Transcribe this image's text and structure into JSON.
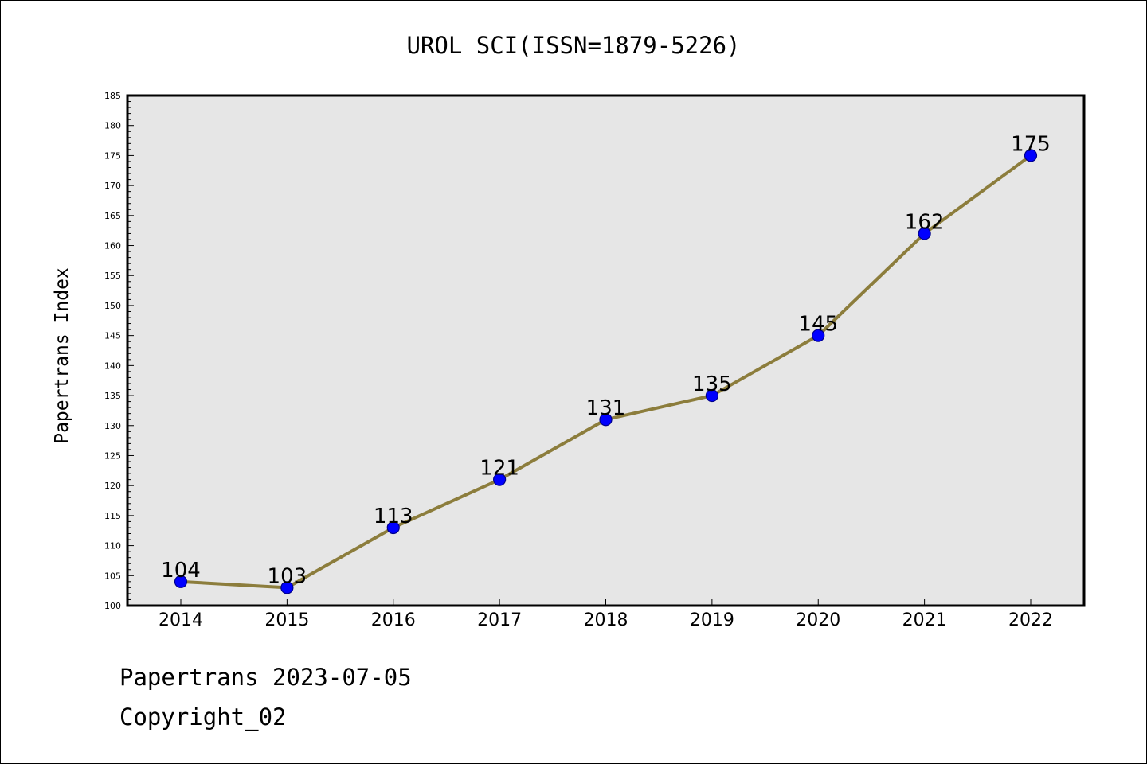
{
  "chart_data": {
    "type": "line",
    "title": "UROL SCI(ISSN=1879-5226)",
    "xlabel": "",
    "ylabel": "Papertrans Index",
    "categories": [
      "2014",
      "2015",
      "2016",
      "2017",
      "2018",
      "2019",
      "2020",
      "2021",
      "2022"
    ],
    "series": [
      {
        "values": [
          104,
          103,
          113,
          121,
          131,
          135,
          145,
          162,
          175
        ]
      }
    ],
    "data_labels": [
      "104",
      "103",
      "113",
      "121",
      "131",
      "135",
      "145",
      "162",
      "175"
    ],
    "ylim": [
      100,
      185
    ],
    "y_ticks": [
      100,
      105,
      110,
      115,
      120,
      125,
      130,
      135,
      140,
      145,
      150,
      155,
      160,
      165,
      170,
      175,
      180,
      185
    ],
    "grid": false,
    "legend": "none",
    "colors": {
      "line": "#8c7d3c",
      "marker_fill": "#0000ff",
      "marker_edge": "#00008b",
      "plot_background": "#e6e6e6"
    }
  },
  "footer": {
    "date_text": "Papertrans 2023-07-05",
    "copyright_text": "Copyright_02"
  }
}
